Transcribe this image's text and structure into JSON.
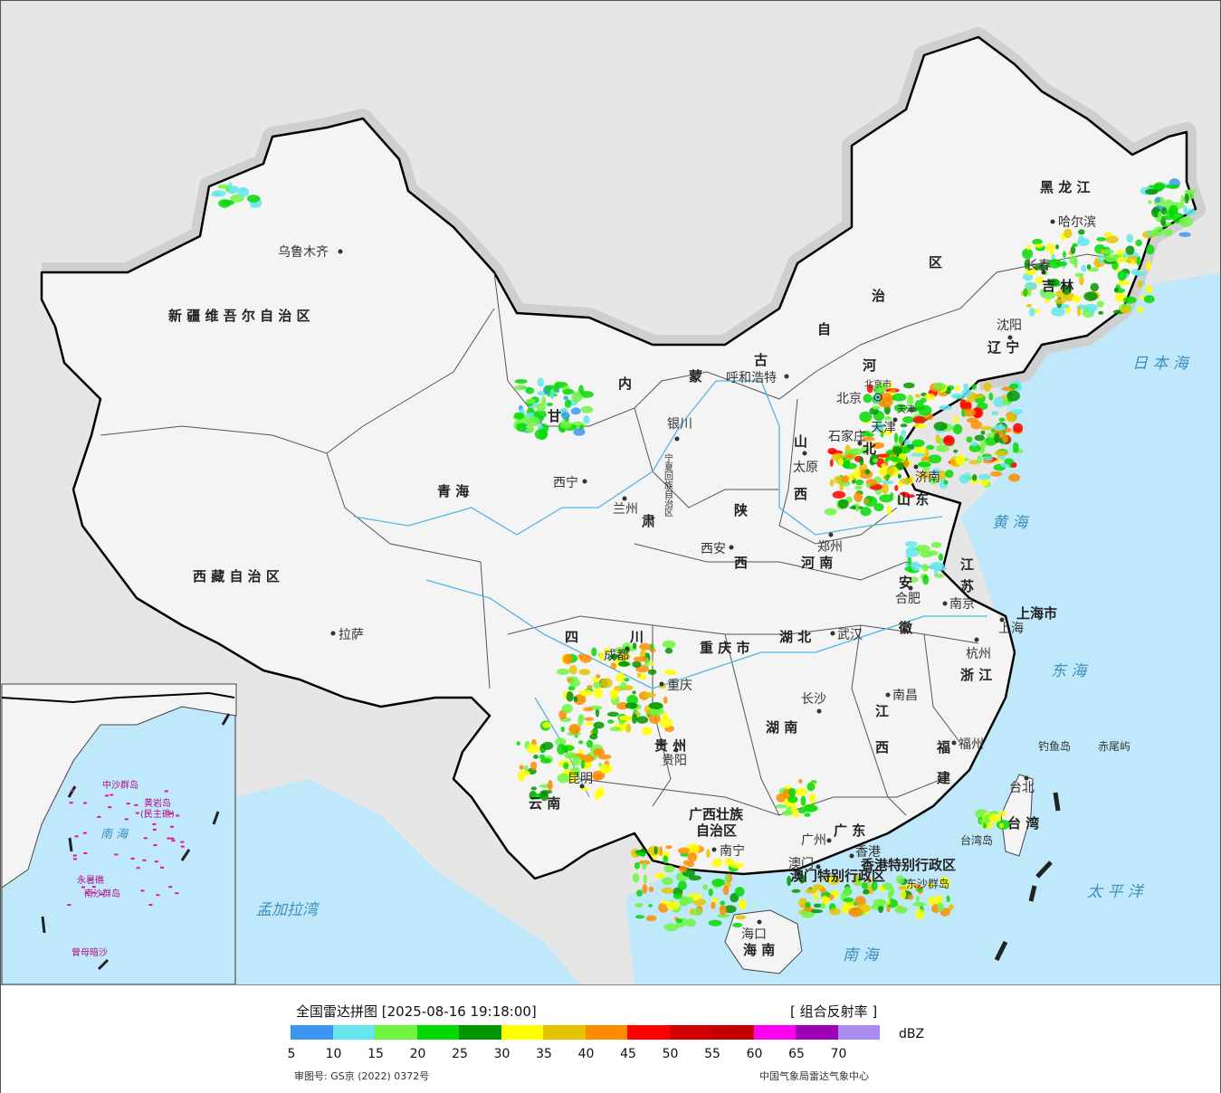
{
  "map": {
    "provinces": [
      {
        "id": "xinjiang",
        "text": "新 疆 维 吾 尔 自 治 区"
      },
      {
        "id": "xizang",
        "text": "西 藏 自 治 区"
      },
      {
        "id": "qinghai",
        "text": "青 海"
      },
      {
        "id": "neimenggu-1",
        "text": "内"
      },
      {
        "id": "neimenggu-2",
        "text": "蒙"
      },
      {
        "id": "neimenggu-3",
        "text": "古"
      },
      {
        "id": "neimenggu-4",
        "text": "自"
      },
      {
        "id": "neimenggu-5",
        "text": "治"
      },
      {
        "id": "neimenggu-6",
        "text": "区"
      },
      {
        "id": "heilongjiang",
        "text": "黑 龙 江"
      },
      {
        "id": "jilin",
        "text": "吉 林"
      },
      {
        "id": "liaoning",
        "text": "辽 宁"
      },
      {
        "id": "hebei-1",
        "text": "河"
      },
      {
        "id": "hebei-2",
        "text": "北"
      },
      {
        "id": "shanxi-1",
        "text": "山"
      },
      {
        "id": "shanxi-2",
        "text": "西"
      },
      {
        "id": "shandong",
        "text": "山 东"
      },
      {
        "id": "henan",
        "text": "河 南"
      },
      {
        "id": "shaanxi-1",
        "text": "陕"
      },
      {
        "id": "shaanxi-2",
        "text": "西"
      },
      {
        "id": "gansu-1",
        "text": "甘"
      },
      {
        "id": "gansu-2",
        "text": "肃"
      },
      {
        "id": "sichuan-1",
        "text": "四"
      },
      {
        "id": "sichuan-2",
        "text": "川"
      },
      {
        "id": "chongqing",
        "text": "重 庆 市"
      },
      {
        "id": "hubei",
        "text": "湖 北"
      },
      {
        "id": "hunan",
        "text": "湖 南"
      },
      {
        "id": "jiangxi-1",
        "text": "江"
      },
      {
        "id": "jiangxi-2",
        "text": "西"
      },
      {
        "id": "anhui-1",
        "text": "安"
      },
      {
        "id": "anhui-2",
        "text": "徽"
      },
      {
        "id": "jiangsu-1",
        "text": "江"
      },
      {
        "id": "jiangsu-2",
        "text": "苏"
      },
      {
        "id": "zhejiang",
        "text": "浙 江"
      },
      {
        "id": "fujian-1",
        "text": "福"
      },
      {
        "id": "fujian-2",
        "text": "建"
      },
      {
        "id": "guizhou",
        "text": "贵 州"
      },
      {
        "id": "yunnan",
        "text": "云 南"
      },
      {
        "id": "guangxi-1",
        "text": "广西壮族"
      },
      {
        "id": "guangxi-2",
        "text": "自治区"
      },
      {
        "id": "guangdong",
        "text": "广 东"
      },
      {
        "id": "hainan",
        "text": "海 南"
      },
      {
        "id": "taiwan",
        "text": "台 湾"
      },
      {
        "id": "shanghai",
        "text": "上海市"
      },
      {
        "id": "ningxia",
        "text": "宁夏回族自治区"
      },
      {
        "id": "hongkong",
        "text": "香港特别行政区"
      },
      {
        "id": "macau",
        "text": "澳门特别行政区"
      },
      {
        "id": "beijing-shi",
        "text": "北京市"
      },
      {
        "id": "tianjin-shi",
        "text": "天津"
      }
    ],
    "cities": [
      {
        "id": "urumqi",
        "text": "乌鲁木齐"
      },
      {
        "id": "lhasa",
        "text": "拉萨"
      },
      {
        "id": "xining",
        "text": "西宁"
      },
      {
        "id": "lanzhou",
        "text": "兰州"
      },
      {
        "id": "yinchuan",
        "text": "银川"
      },
      {
        "id": "hohhot",
        "text": "呼和浩特"
      },
      {
        "id": "beijing",
        "text": "北京"
      },
      {
        "id": "tianjin",
        "text": "天津"
      },
      {
        "id": "shijiazhuang",
        "text": "石家庄"
      },
      {
        "id": "taiyuan",
        "text": "太原"
      },
      {
        "id": "xian",
        "text": "西安"
      },
      {
        "id": "zhengzhou",
        "text": "郑州"
      },
      {
        "id": "jinan",
        "text": "济南"
      },
      {
        "id": "harbin",
        "text": "哈尔滨"
      },
      {
        "id": "changchun",
        "text": "长春"
      },
      {
        "id": "shenyang",
        "text": "沈阳"
      },
      {
        "id": "chengdu",
        "text": "成都"
      },
      {
        "id": "chongqing-c",
        "text": "重庆"
      },
      {
        "id": "wuhan",
        "text": "武汉"
      },
      {
        "id": "hefei",
        "text": "合肥"
      },
      {
        "id": "nanjing",
        "text": "南京"
      },
      {
        "id": "shanghai-c",
        "text": "上海"
      },
      {
        "id": "hangzhou",
        "text": "杭州"
      },
      {
        "id": "nanchang",
        "text": "南昌"
      },
      {
        "id": "changsha",
        "text": "长沙"
      },
      {
        "id": "fuzhou",
        "text": "福州"
      },
      {
        "id": "guiyang",
        "text": "贵阳"
      },
      {
        "id": "kunming",
        "text": "昆明"
      },
      {
        "id": "nanning",
        "text": "南宁"
      },
      {
        "id": "guangzhou",
        "text": "广州"
      },
      {
        "id": "hongkong-c",
        "text": "香港"
      },
      {
        "id": "macau-c",
        "text": "澳门"
      },
      {
        "id": "haikou",
        "text": "海口"
      },
      {
        "id": "taipei",
        "text": "台北"
      }
    ],
    "seas": [
      {
        "id": "riben-hai",
        "text": "日 本 海"
      },
      {
        "id": "huang-hai",
        "text": "黄 海"
      },
      {
        "id": "dong-hai",
        "text": "东 海"
      },
      {
        "id": "nan-hai",
        "text": "南 海"
      },
      {
        "id": "taiping-yang",
        "text": "太 平 洋"
      },
      {
        "id": "mengjiala-wan",
        "text": "孟加拉湾"
      }
    ],
    "islands": [
      {
        "id": "diaoyudao",
        "text": "钓鱼岛"
      },
      {
        "id": "chiweiyu",
        "text": "赤尾屿"
      },
      {
        "id": "taiwan-dao",
        "text": "台湾岛"
      },
      {
        "id": "dongsha",
        "text": "东沙群岛"
      }
    ],
    "inset": {
      "sea": "南 海",
      "labels": [
        "中沙群岛",
        "黄岩岛",
        "(民主礁)",
        "永暑礁",
        "南沙群岛",
        "曾母暗沙"
      ]
    },
    "colors": {
      "land": "#f4f4f4",
      "sea": "#c0e8fb",
      "background": "#e6e6e6",
      "border": "#000000",
      "river": "#55b4e6"
    }
  },
  "legend": {
    "title": "全国雷达拼图 [2025-08-16 19:18:00]",
    "product": "[ 组合反射率 ]",
    "unit": "dBZ",
    "ticks": [
      "5",
      "10",
      "15",
      "20",
      "25",
      "30",
      "35",
      "40",
      "45",
      "50",
      "55",
      "60",
      "65",
      "70"
    ],
    "colors": [
      "#3c96f0",
      "#64e6ec",
      "#6ef442",
      "#04d904",
      "#009500",
      "#ffff00",
      "#e6c300",
      "#ff8c00",
      "#ff0000",
      "#d20000",
      "#c20000",
      "#ff00f0",
      "#9e00b4",
      "#aa8cf0"
    ],
    "approval": "审图号: GS京 (2022) 0372号",
    "producer": "中国气象局雷达气象中心"
  }
}
